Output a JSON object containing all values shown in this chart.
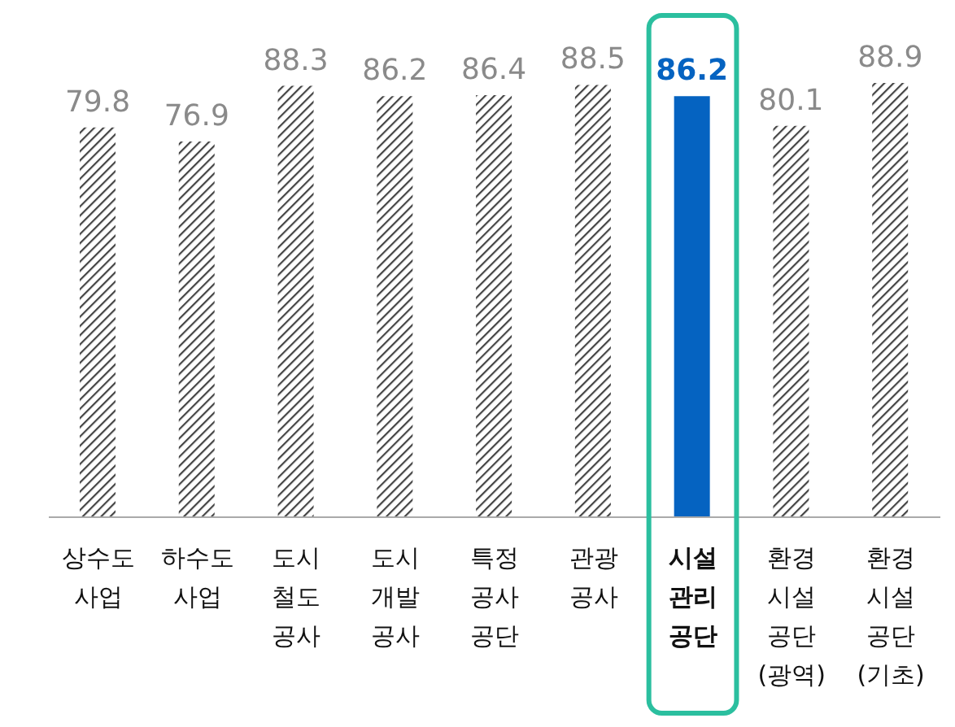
{
  "chart_data": {
    "type": "bar",
    "categories": [
      "상수도 사업",
      "하수도 사업",
      "도시 철도 공사",
      "도시 개발 공사",
      "특정 공사 공단",
      "관광 공사",
      "시설 관리 공단",
      "환경 시설 공단 (광역)",
      "환경 시설 공단 (기초)"
    ],
    "values": [
      79.8,
      76.9,
      88.3,
      86.2,
      86.4,
      88.5,
      86.2,
      80.1,
      88.9
    ],
    "colors": [
      "#444444",
      "#444444",
      "#444444",
      "#444444",
      "#444444",
      "#444444",
      "#0563c1",
      "#444444",
      "#444444"
    ],
    "data_labels": true
  }
}
